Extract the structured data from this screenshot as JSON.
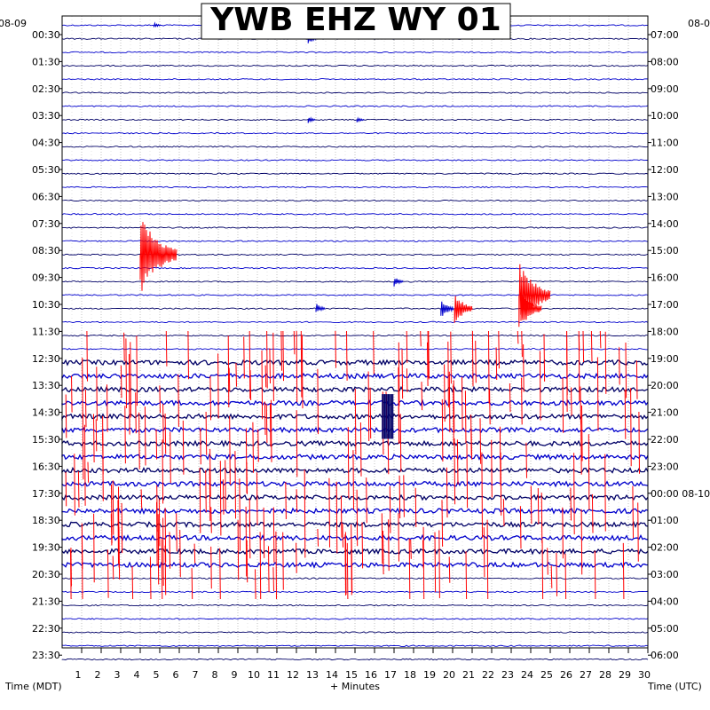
{
  "chart_data": {
    "type": "line",
    "title": "YWB EHZ WY 01",
    "xlabel": "+ Minutes",
    "left_axis_title": "Time (MDT)",
    "right_axis_title": "Time (UTC)",
    "left_date_label": "08-09",
    "right_date_label": "08-0",
    "x_ticks": [
      1,
      2,
      3,
      4,
      5,
      6,
      7,
      8,
      9,
      10,
      11,
      12,
      13,
      14,
      15,
      16,
      17,
      18,
      19,
      20,
      21,
      22,
      23,
      24,
      25,
      26,
      27,
      28,
      29,
      30
    ],
    "xlim": [
      0,
      30
    ],
    "left_time_labels": [
      "00:30",
      "01:30",
      "02:30",
      "03:30",
      "04:30",
      "05:30",
      "06:30",
      "07:30",
      "08:30",
      "09:30",
      "10:30",
      "11:30",
      "12:30",
      "13:30",
      "14:30",
      "15:30",
      "16:30",
      "17:30",
      "18:30",
      "19:30",
      "20:30",
      "21:30",
      "22:30",
      "23:30"
    ],
    "right_time_labels": [
      "07:00",
      "08:00",
      "09:00",
      "10:00",
      "11:00",
      "12:00",
      "13:00",
      "14:00",
      "15:00",
      "16:00",
      "17:00",
      "18:00",
      "19:00",
      "20:00",
      "21:00",
      "22:00",
      "23:00",
      "00:00 08-10",
      "01:00",
      "02:00",
      "03:00",
      "04:00",
      "05:00",
      "06:00"
    ],
    "trace_count": 48,
    "trace_colors": [
      "#0000cc",
      "#000066"
    ],
    "event_color": "#ff0000",
    "background": "#ffffff",
    "grid": "dotted",
    "events": [
      {
        "x": 4.7,
        "trace": 0,
        "amplitude": 0.4
      },
      {
        "x": 12.6,
        "trace": 1,
        "amplitude": 0.8
      },
      {
        "x": 12.6,
        "trace": 7,
        "amplitude": 0.5
      },
      {
        "x": 15.1,
        "trace": 7,
        "amplitude": 0.4
      },
      {
        "x": 17.0,
        "trace": 19,
        "amplitude": 0.8
      },
      {
        "x": 4.0,
        "trace": 17,
        "amplitude": 6.0
      },
      {
        "x": 13.0,
        "trace": 21,
        "amplitude": 0.8
      },
      {
        "x": 19.4,
        "trace": 21,
        "amplitude": 1.5
      },
      {
        "x": 20.1,
        "trace": 21,
        "amplitude": 2.4
      },
      {
        "x": 23.4,
        "trace": 20,
        "amplitude": 5.0
      },
      {
        "x": 23.5,
        "trace": 21,
        "amplitude": 3.0
      }
    ],
    "swarm_start_trace": 23,
    "swarm_end_trace": 42,
    "tremor_traces": [
      25,
      26,
      27,
      28,
      29,
      30,
      31,
      32,
      33,
      34,
      35,
      36,
      37,
      38,
      39,
      40
    ]
  }
}
